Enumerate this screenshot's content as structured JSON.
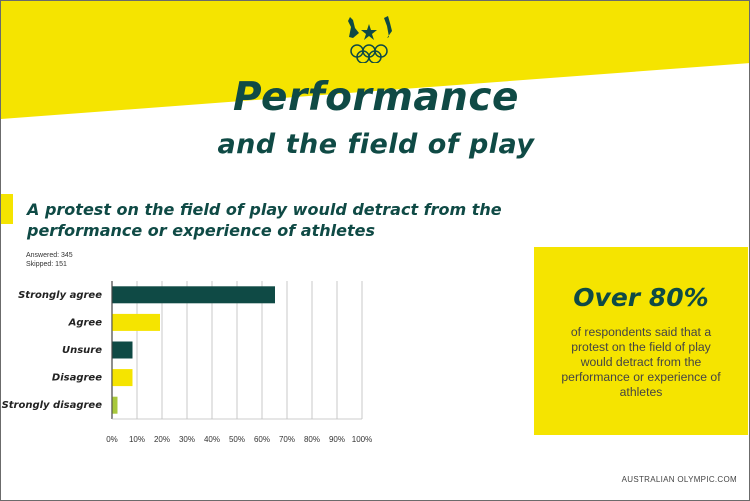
{
  "header": {
    "title": "Performance",
    "subtitle": "and the field of play"
  },
  "question": "A protest on the field of play would detract from the performance or experience of athletes",
  "stats": {
    "answered": "Answered: 345",
    "skipped": "Skipped: 151"
  },
  "callout": {
    "title": "Over 80%",
    "text": "of respondents said that a protest on the field of play would detract from the performance or experience of athletes"
  },
  "footer": {
    "site": "AUSTRALIAN OLYMPIC.COM"
  },
  "colors": {
    "yellow": "#f5e400",
    "dark_green": "#0f4a45",
    "light_green": "#a8c83c"
  },
  "chart_data": {
    "type": "bar",
    "orientation": "horizontal",
    "categories": [
      "Strongly agree",
      "Agree",
      "Unsure",
      "Disagree",
      "Strongly disagree"
    ],
    "values": [
      65,
      19,
      8,
      8,
      2
    ],
    "bar_colors": [
      "#0f4a45",
      "#f5e400",
      "#0f4a45",
      "#f5e400",
      "#a8c83c"
    ],
    "xticks": [
      "0%",
      "10%",
      "20%",
      "30%",
      "40%",
      "50%",
      "60%",
      "70%",
      "80%",
      "90%",
      "100%"
    ],
    "xlim": [
      0,
      100
    ],
    "grid": true
  }
}
